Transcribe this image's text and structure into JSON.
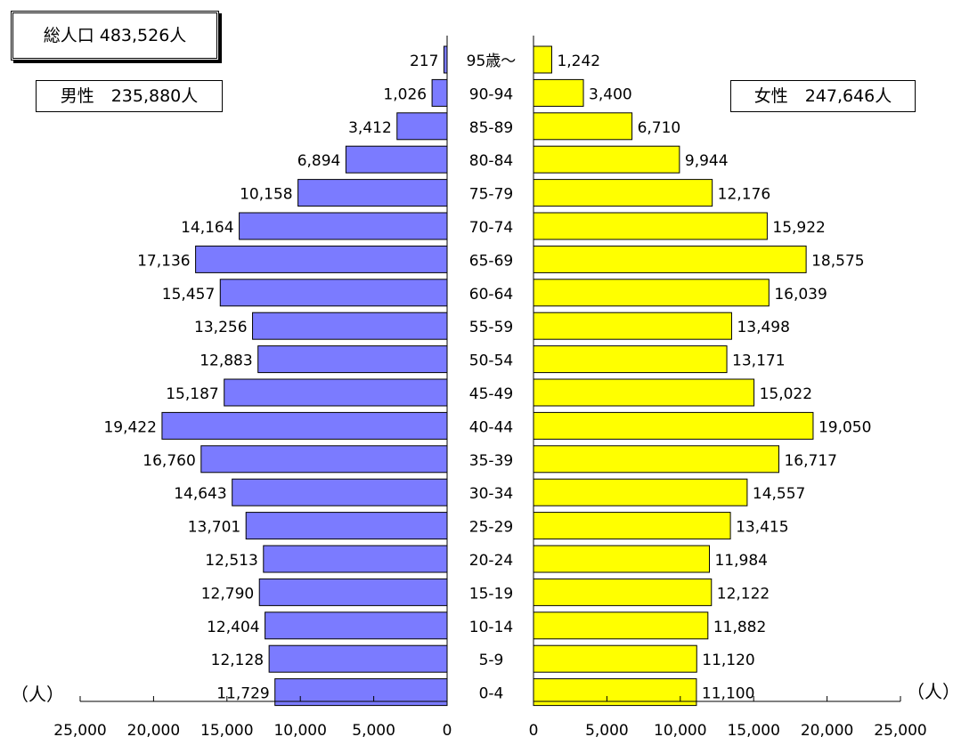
{
  "header": {
    "total_label": "総人口 483,526人",
    "male_label": "男性　235,880人",
    "female_label": "女性　247,646人"
  },
  "units": {
    "left": "（人）",
    "right": "（人）"
  },
  "colors": {
    "male_bar": "#7b7bff",
    "female_bar": "#ffff00",
    "outline": "#000000"
  },
  "chart_data": {
    "type": "bar",
    "orientation": "horizontal-pyramid",
    "categories": [
      "95歳～",
      "90-94",
      "85-89",
      "80-84",
      "75-79",
      "70-74",
      "65-69",
      "60-64",
      "55-59",
      "50-54",
      "45-49",
      "40-44",
      "35-39",
      "30-34",
      "25-29",
      "20-24",
      "15-19",
      "10-14",
      "5-9",
      "0-4"
    ],
    "series": [
      {
        "name": "男性",
        "values": [
          217,
          1026,
          3412,
          6894,
          10158,
          14164,
          17136,
          15457,
          13256,
          12883,
          15187,
          19422,
          16760,
          14643,
          13701,
          12513,
          12790,
          12404,
          12128,
          11729
        ]
      },
      {
        "name": "女性",
        "values": [
          1242,
          3400,
          6710,
          9944,
          12176,
          15922,
          18575,
          16039,
          13498,
          13171,
          15022,
          19050,
          16717,
          14557,
          13415,
          11984,
          12122,
          11882,
          11120,
          11100
        ]
      }
    ],
    "value_labels": {
      "male": [
        "217",
        "1,026",
        "3,412",
        "6,894",
        "10,158",
        "14,164",
        "17,136",
        "15,457",
        "13,256",
        "12,883",
        "15,187",
        "19,422",
        "16,760",
        "14,643",
        "13,701",
        "12,513",
        "12,790",
        "12,404",
        "12,128",
        "11,729"
      ],
      "female": [
        "1,242",
        "3,400",
        "6,710",
        "9,944",
        "12,176",
        "15,922",
        "18,575",
        "16,039",
        "13,498",
        "13,171",
        "15,022",
        "19,050",
        "16,717",
        "14,557",
        "13,415",
        "11,984",
        "12,122",
        "11,882",
        "11,120",
        "11,100"
      ]
    },
    "x_ticks": [
      0,
      5000,
      10000,
      15000,
      20000,
      25000
    ],
    "x_tick_labels": [
      "0",
      "5,000",
      "10,000",
      "15,000",
      "20,000",
      "25,000"
    ],
    "xlim": [
      0,
      25000
    ],
    "grid": false,
    "legend": "none"
  }
}
